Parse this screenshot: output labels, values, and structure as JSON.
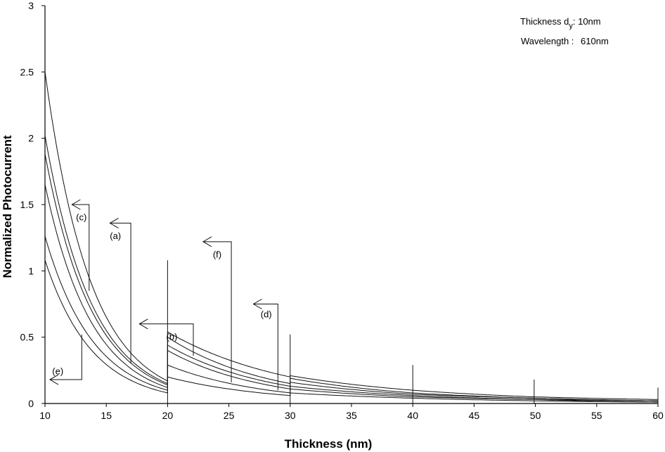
{
  "chart_data": {
    "type": "line",
    "title": "",
    "xlabel": "Thickness (nm)",
    "ylabel": "Normalized Photocurrent",
    "xlim": [
      10,
      60
    ],
    "ylim": [
      0,
      3
    ],
    "xticks": [
      10,
      15,
      20,
      25,
      30,
      35,
      40,
      45,
      50,
      55,
      60
    ],
    "yticks": [
      0,
      0.5,
      1,
      1.5,
      2,
      2.5,
      3
    ],
    "ytick_labels": [
      "0",
      "0.5",
      "1",
      "1.5",
      "2",
      "2.5",
      "3"
    ],
    "info": {
      "thickness_label": "Thickness d",
      "thickness_sub": "y",
      "thickness_value": ": 10nm",
      "wavelength_label": "Wavelength :",
      "wavelength_value": "610nm"
    },
    "series": [
      {
        "name": "c",
        "points": [
          [
            10,
            2.5
          ],
          [
            20,
            0.17
          ],
          [
            20,
            0.54
          ],
          [
            30,
            0.2
          ],
          [
            30,
            0.21
          ],
          [
            40,
            0.1
          ],
          [
            50,
            0.05
          ],
          [
            60,
            0.03
          ]
        ]
      },
      {
        "name": "a",
        "points": [
          [
            10,
            2.02
          ],
          [
            20,
            0.15
          ],
          [
            20,
            0.5
          ],
          [
            30,
            0.15
          ],
          [
            30,
            0.19
          ],
          [
            40,
            0.08
          ],
          [
            50,
            0.04
          ],
          [
            60,
            0.02
          ]
        ]
      },
      {
        "name": "f",
        "points": [
          [
            10,
            1.88
          ],
          [
            20,
            0.14
          ],
          [
            20,
            0.44
          ],
          [
            30,
            0.13
          ],
          [
            30,
            0.16
          ],
          [
            40,
            0.07
          ],
          [
            50,
            0.04
          ],
          [
            60,
            0.02
          ]
        ]
      },
      {
        "name": "b",
        "points": [
          [
            10,
            1.65
          ],
          [
            20,
            0.12
          ],
          [
            20,
            0.4
          ],
          [
            30,
            0.11
          ],
          [
            30,
            0.13
          ],
          [
            40,
            0.06
          ],
          [
            50,
            0.03
          ],
          [
            60,
            0.02
          ]
        ]
      },
      {
        "name": "d",
        "points": [
          [
            10,
            1.26
          ],
          [
            20,
            0.1
          ],
          [
            20,
            0.29
          ],
          [
            30,
            0.08
          ],
          [
            30,
            0.11
          ],
          [
            40,
            0.05
          ],
          [
            50,
            0.03
          ],
          [
            60,
            0.01
          ]
        ]
      },
      {
        "name": "e",
        "points": [
          [
            10,
            1.08
          ],
          [
            20,
            0.08
          ],
          [
            20,
            0.2
          ],
          [
            30,
            0.06
          ],
          [
            30,
            0.08
          ],
          [
            40,
            0.04
          ],
          [
            50,
            0.02
          ],
          [
            60,
            0.01
          ]
        ]
      }
    ],
    "spikes": [
      {
        "x": 20,
        "y": 1.08
      },
      {
        "x": 30,
        "y": 0.52
      },
      {
        "x": 40,
        "y": 0.29
      },
      {
        "x": 49.9,
        "y": 0.18
      },
      {
        "x": 60,
        "y": 0.12
      }
    ],
    "annotations": [
      {
        "label": "(c)",
        "arrow_tip": [
          12.2,
          1.5
        ],
        "bend_x": 13.6,
        "drop_to_y": 0.85,
        "label_at": [
          13.4,
          1.38
        ]
      },
      {
        "label": "(a)",
        "arrow_tip": [
          15.3,
          1.36
        ],
        "bend_x": 17.0,
        "drop_to_y": 0.3,
        "label_at": [
          16.2,
          1.24
        ]
      },
      {
        "label": "(b)",
        "arrow_tip": [
          17.7,
          0.6
        ],
        "bend_x": 22.1,
        "drop_to_y": 0.36,
        "label_at": [
          20.8,
          0.48
        ]
      },
      {
        "label": "(f)",
        "arrow_tip": [
          22.9,
          1.22
        ],
        "bend_x": 25.2,
        "drop_to_y": 0.16,
        "label_at": [
          24.4,
          1.1
        ]
      },
      {
        "label": "(d)",
        "arrow_tip": [
          27.0,
          0.75
        ],
        "bend_x": 29.0,
        "drop_to_y": 0.1,
        "label_at": [
          28.5,
          0.65
        ]
      },
      {
        "label": "(e)",
        "arrow_tip": [
          10.4,
          0.18
        ],
        "bend_x": 13.0,
        "drop_to_y": 0.52,
        "label_at": [
          11.5,
          0.22
        ]
      }
    ]
  }
}
